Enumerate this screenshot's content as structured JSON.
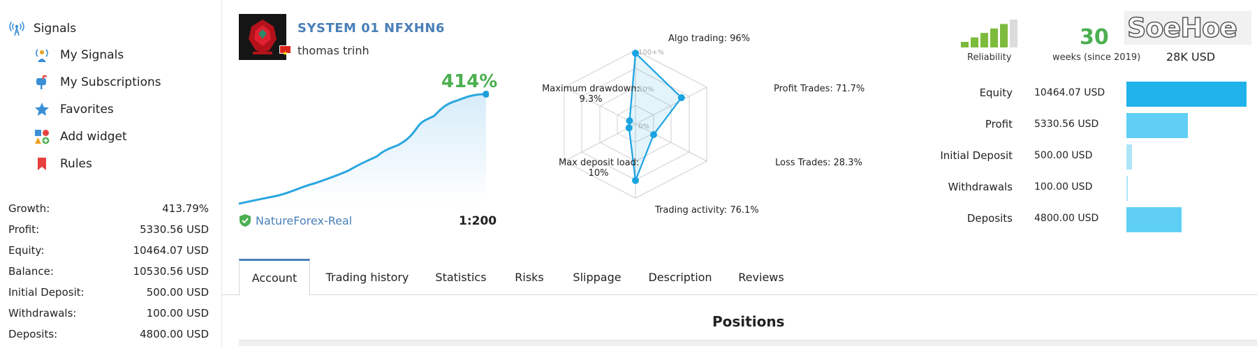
{
  "sidebar": {
    "title": "Signals",
    "items": [
      {
        "label": "My Signals",
        "icon": "antenna-person-icon"
      },
      {
        "label": "My Subscriptions",
        "icon": "mailbox-icon"
      },
      {
        "label": "Favorites",
        "icon": "star-icon"
      },
      {
        "label": "Add widget",
        "icon": "widget-plus-icon"
      },
      {
        "label": "Rules",
        "icon": "bookmark-icon"
      }
    ],
    "stats": [
      {
        "label": "Growth:",
        "value": "413.79%"
      },
      {
        "label": "Profit:",
        "value": "5330.56 USD"
      },
      {
        "label": "Equity:",
        "value": "10464.07 USD"
      },
      {
        "label": "Balance:",
        "value": "10530.56 USD"
      },
      {
        "label": "Initial Deposit:",
        "value": "500.00 USD"
      },
      {
        "label": "Withdrawals:",
        "value": "100.00 USD"
      },
      {
        "label": "Deposits:",
        "value": "4800.00 USD"
      }
    ]
  },
  "signal": {
    "title": "SYSTEM 01 NFXHN6",
    "author": "thomas trinh",
    "growth": "414%",
    "broker": "NatureForex-Real",
    "leverage": "1:200"
  },
  "radar": {
    "labels": {
      "algo": "Algo trading: 96%",
      "profit_trades": "Profit Trades: 71.7%",
      "loss_trades": "Loss Trades: 28.3%",
      "activity": "Trading activity: 76.1%",
      "deposit_load_1": "Max deposit load:",
      "deposit_load_2": "10%",
      "drawdown_1": "Maximum drawdown:",
      "drawdown_2": "9.3%"
    },
    "ticks": [
      "100+%",
      "50%",
      "0%"
    ],
    "values": {
      "algo": 96,
      "profit_trades": 71.7,
      "loss_trades": 28.3,
      "activity": 76.1,
      "deposit_load": 10,
      "drawdown": 9.3
    }
  },
  "summary": {
    "reliability_label": "Reliability",
    "reliability_level": 5,
    "weeks_value": "30",
    "weeks_label": "weeks (since 2019)",
    "money_value": "28K USD",
    "watermark": "SoeHoe"
  },
  "balance": [
    {
      "label": "Equity",
      "value": "10464.07 USD",
      "amount": 10464.07,
      "color": "#1fb3ea"
    },
    {
      "label": "Profit",
      "value": "5330.56 USD",
      "amount": 5330.56,
      "color": "#5fcff5"
    },
    {
      "label": "Initial Deposit",
      "value": "500.00 USD",
      "amount": 500,
      "color": "#aee4f8"
    },
    {
      "label": "Withdrawals",
      "value": "100.00 USD",
      "amount": 100,
      "color": "#aee4f8"
    },
    {
      "label": "Deposits",
      "value": "4800.00 USD",
      "amount": 4800,
      "color": "#5fcff5"
    }
  ],
  "tabs": [
    "Account",
    "Trading history",
    "Statistics",
    "Risks",
    "Slippage",
    "Description",
    "Reviews"
  ],
  "positions_title": "Positions"
}
